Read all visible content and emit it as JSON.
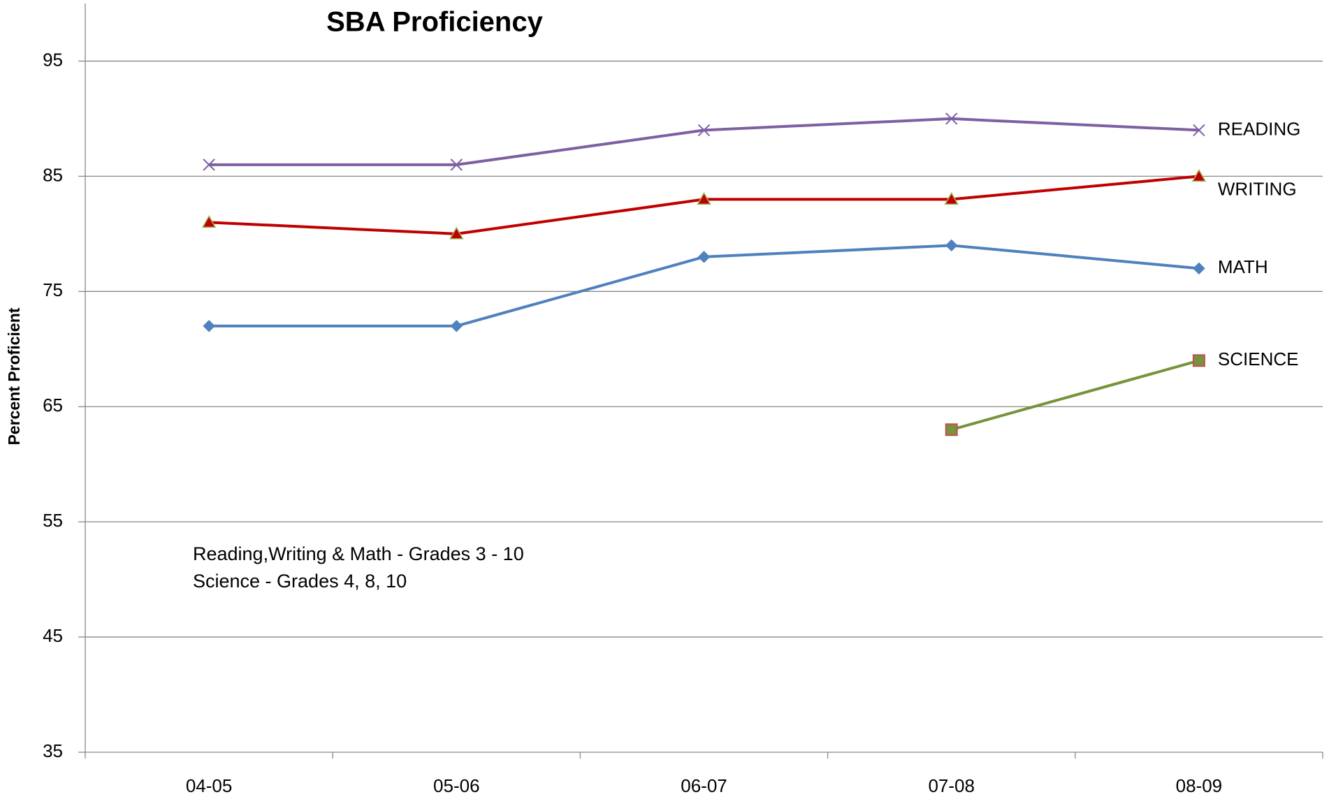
{
  "chart_data": {
    "type": "line",
    "title": "SBA Proficiency",
    "y_label": "Percent Proficient",
    "categories": [
      "04-05",
      "05-06",
      "06-07",
      "07-08",
      "08-09"
    ],
    "series": [
      {
        "name": "READING",
        "color": "#7e60a2",
        "marker": "x",
        "values": [
          86,
          86,
          89,
          90,
          89
        ]
      },
      {
        "name": "WRITING",
        "color": "#c00000",
        "marker": "triangle",
        "values": [
          81,
          80,
          83,
          83,
          85
        ]
      },
      {
        "name": "MATH",
        "color": "#4f81bd",
        "marker": "diamond",
        "values": [
          72,
          72,
          78,
          79,
          77
        ]
      },
      {
        "name": "SCIENCE",
        "color": "#77933c",
        "marker": "square",
        "values": [
          null,
          null,
          null,
          63,
          69
        ]
      }
    ],
    "annotations": [
      "Reading,Writing & Math - Grades 3 - 10",
      "Science - Grades 4, 8, 10"
    ],
    "ylim": [
      35,
      100
    ],
    "yticks": [
      35,
      45,
      55,
      65,
      75,
      85,
      95
    ],
    "grid": true
  }
}
